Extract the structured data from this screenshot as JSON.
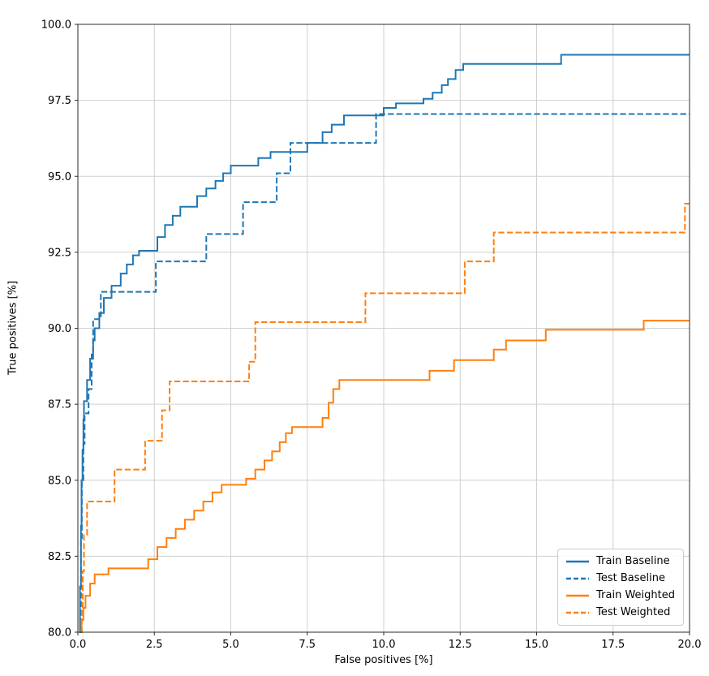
{
  "chart_data": {
    "type": "line",
    "title": "",
    "xlabel": "False positives [%]",
    "ylabel": "True positives [%]",
    "xlim": [
      0,
      20
    ],
    "ylim": [
      80,
      100
    ],
    "x_ticks": [
      0.0,
      2.5,
      5.0,
      7.5,
      10.0,
      12.5,
      15.0,
      17.5,
      20.0
    ],
    "x_tick_labels": [
      "0.0",
      "2.5",
      "5.0",
      "7.5",
      "10.0",
      "12.5",
      "15.0",
      "17.5",
      "20.0"
    ],
    "y_ticks": [
      80.0,
      82.5,
      85.0,
      87.5,
      90.0,
      92.5,
      95.0,
      97.5,
      100.0
    ],
    "y_tick_labels": [
      "80.0",
      "82.5",
      "85.0",
      "87.5",
      "90.0",
      "92.5",
      "95.0",
      "97.5",
      "100.0"
    ],
    "grid": true,
    "grid_color": "#cfcfcf",
    "spine_color": "#2b2b2b",
    "legend_position": "lower right",
    "step_mode": "horizontal-then-vertical",
    "series": [
      {
        "name": "Train Baseline",
        "color": "#1f77b4",
        "style": "solid",
        "points": [
          [
            0.05,
            80.0
          ],
          [
            0.07,
            81.5
          ],
          [
            0.1,
            83.5
          ],
          [
            0.12,
            85.0
          ],
          [
            0.15,
            86.0
          ],
          [
            0.18,
            87.0
          ],
          [
            0.2,
            87.6
          ],
          [
            0.3,
            88.3
          ],
          [
            0.4,
            89.0
          ],
          [
            0.5,
            89.6
          ],
          [
            0.55,
            90.0
          ],
          [
            0.7,
            90.5
          ],
          [
            0.85,
            91.0
          ],
          [
            1.1,
            91.4
          ],
          [
            1.4,
            91.8
          ],
          [
            1.6,
            92.1
          ],
          [
            1.8,
            92.4
          ],
          [
            2.0,
            92.55
          ],
          [
            2.6,
            93.0
          ],
          [
            2.85,
            93.4
          ],
          [
            3.1,
            93.7
          ],
          [
            3.35,
            94.0
          ],
          [
            3.9,
            94.35
          ],
          [
            4.2,
            94.6
          ],
          [
            4.5,
            94.85
          ],
          [
            4.75,
            95.1
          ],
          [
            5.0,
            95.35
          ],
          [
            5.9,
            95.6
          ],
          [
            6.3,
            95.8
          ],
          [
            7.5,
            96.1
          ],
          [
            8.0,
            96.45
          ],
          [
            8.3,
            96.7
          ],
          [
            8.7,
            97.0
          ],
          [
            10.0,
            97.25
          ],
          [
            10.4,
            97.4
          ],
          [
            11.3,
            97.55
          ],
          [
            11.6,
            97.75
          ],
          [
            11.9,
            98.0
          ],
          [
            12.1,
            98.2
          ],
          [
            12.35,
            98.5
          ],
          [
            12.6,
            98.7
          ],
          [
            15.8,
            99.0
          ],
          [
            20.0,
            99.0
          ]
        ]
      },
      {
        "name": "Test Baseline",
        "color": "#1f77b4",
        "style": "dashed",
        "points": [
          [
            0.08,
            80.0
          ],
          [
            0.1,
            83.0
          ],
          [
            0.13,
            85.0
          ],
          [
            0.18,
            86.2
          ],
          [
            0.22,
            87.2
          ],
          [
            0.35,
            88.0
          ],
          [
            0.45,
            89.2
          ],
          [
            0.5,
            90.3
          ],
          [
            0.75,
            91.2
          ],
          [
            2.55,
            92.2
          ],
          [
            4.2,
            93.1
          ],
          [
            5.4,
            94.15
          ],
          [
            6.5,
            95.1
          ],
          [
            6.95,
            96.1
          ],
          [
            9.75,
            97.05
          ],
          [
            20.0,
            97.05
          ]
        ]
      },
      {
        "name": "Train Weighted",
        "color": "#ff7f0e",
        "style": "solid",
        "points": [
          [
            0.1,
            80.0
          ],
          [
            0.12,
            80.4
          ],
          [
            0.18,
            80.8
          ],
          [
            0.25,
            81.2
          ],
          [
            0.4,
            81.6
          ],
          [
            0.55,
            81.9
          ],
          [
            1.0,
            82.1
          ],
          [
            2.3,
            82.4
          ],
          [
            2.6,
            82.8
          ],
          [
            2.9,
            83.1
          ],
          [
            3.2,
            83.4
          ],
          [
            3.5,
            83.7
          ],
          [
            3.8,
            84.0
          ],
          [
            4.1,
            84.3
          ],
          [
            4.4,
            84.6
          ],
          [
            4.7,
            84.85
          ],
          [
            5.5,
            85.05
          ],
          [
            5.8,
            85.35
          ],
          [
            6.1,
            85.65
          ],
          [
            6.35,
            85.95
          ],
          [
            6.6,
            86.25
          ],
          [
            6.8,
            86.55
          ],
          [
            7.0,
            86.75
          ],
          [
            8.0,
            87.05
          ],
          [
            8.2,
            87.55
          ],
          [
            8.35,
            88.0
          ],
          [
            8.55,
            88.3
          ],
          [
            11.5,
            88.6
          ],
          [
            12.3,
            88.95
          ],
          [
            13.6,
            89.3
          ],
          [
            14.0,
            89.6
          ],
          [
            15.3,
            89.95
          ],
          [
            18.5,
            90.25
          ],
          [
            20.0,
            90.25
          ]
        ]
      },
      {
        "name": "Test Weighted",
        "color": "#ff7f0e",
        "style": "dashed",
        "points": [
          [
            0.1,
            80.0
          ],
          [
            0.13,
            80.8
          ],
          [
            0.16,
            82.0
          ],
          [
            0.2,
            83.2
          ],
          [
            0.3,
            84.3
          ],
          [
            1.2,
            85.35
          ],
          [
            2.2,
            86.3
          ],
          [
            2.75,
            87.3
          ],
          [
            3.0,
            88.25
          ],
          [
            5.6,
            88.9
          ],
          [
            5.8,
            90.2
          ],
          [
            9.4,
            91.15
          ],
          [
            12.65,
            92.2
          ],
          [
            13.6,
            93.15
          ],
          [
            19.85,
            94.1
          ],
          [
            20.0,
            94.1
          ]
        ]
      }
    ]
  }
}
